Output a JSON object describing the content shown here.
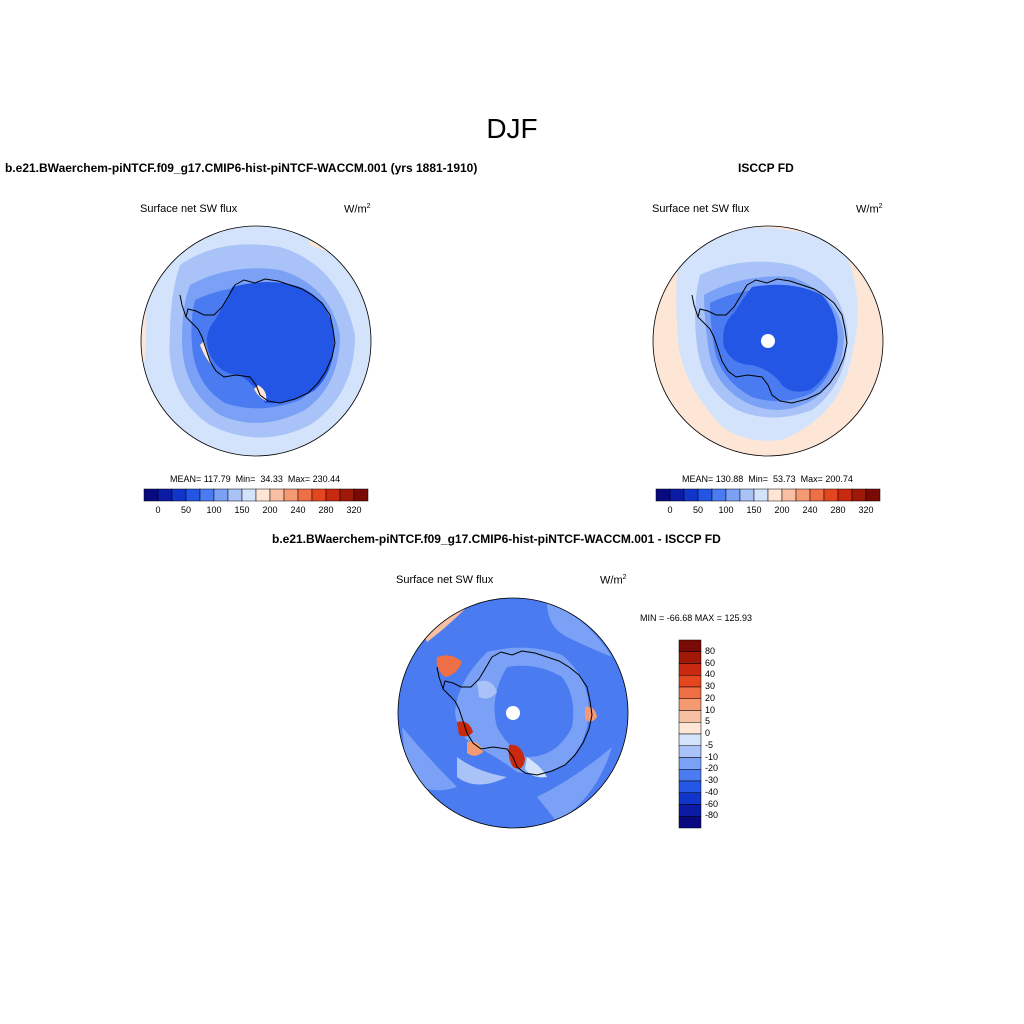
{
  "title": "DJF",
  "panels": {
    "model": {
      "title": "b.e21.BWaerchem-piNTCF.f09_g17.CMIP6-hist-piNTCF-WACCM.001 (yrs 1881-1910)",
      "left_string": "Surface net SW flux",
      "units": "W/m",
      "units_sup": "2",
      "stats": "MEAN= 117.79  Min=  34.33  Max= 230.44"
    },
    "obs": {
      "title": "ISCCP FD",
      "left_string": "Surface net SW flux",
      "units": "W/m",
      "units_sup": "2",
      "stats": "MEAN= 130.88  Min=  53.73  Max= 200.74"
    },
    "diff": {
      "title": "b.e21.BWaerchem-piNTCF.f09_g17.CMIP6-hist-piNTCF-WACCM.001 - ISCCP FD",
      "left_string": "Surface net SW flux",
      "units": "W/m",
      "units_sup": "2",
      "stats": "MIN = -66.68 MAX = 125.93"
    }
  },
  "colorbar_abs": {
    "colors": [
      "#0a0a80",
      "#0b1ba6",
      "#1135c9",
      "#2456e6",
      "#4a7bf0",
      "#7aa1f5",
      "#a9c3f8",
      "#d3e3fb",
      "#fde6d6",
      "#f8c0a3",
      "#f39a72",
      "#ee6e45",
      "#e4461f",
      "#c9290f",
      "#a01808",
      "#7a0a05"
    ],
    "labels": [
      "0",
      "50",
      "100",
      "150",
      "200",
      "240",
      "280",
      "320"
    ]
  },
  "colorbar_diff": {
    "colors": [
      "#7a0a05",
      "#a01808",
      "#c9290f",
      "#e4461f",
      "#ee6e45",
      "#f39a72",
      "#f8c0a3",
      "#fde6d6",
      "#d3e3fb",
      "#a9c3f8",
      "#7aa1f5",
      "#4a7bf0",
      "#2456e6",
      "#1135c9",
      "#0b1ba6",
      "#0a0a80"
    ],
    "labels": [
      "80",
      "60",
      "40",
      "30",
      "20",
      "10",
      "5",
      "0",
      "-5",
      "-10",
      "-20",
      "-30",
      "-40",
      "-60",
      "-80"
    ]
  }
}
